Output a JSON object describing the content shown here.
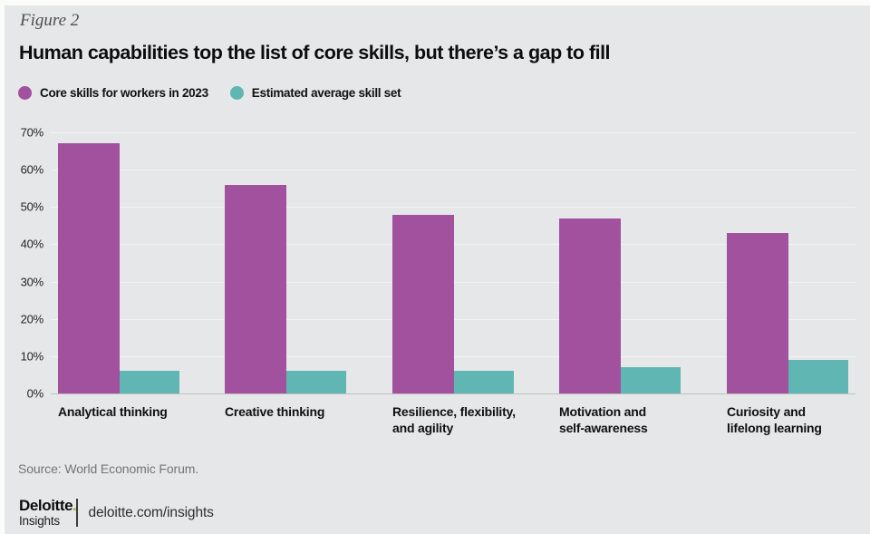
{
  "figure_label": "Figure 2",
  "title": "Human capabilities top the list of core skills, but there’s a gap to fill",
  "legend": [
    {
      "label": "Core skills for workers in 2023",
      "color": "#a1519e"
    },
    {
      "label": "Estimated average skill set",
      "color": "#5fb6b2"
    }
  ],
  "chart_data": {
    "type": "bar",
    "title": "Human capabilities top the list of core skills, but there’s a gap to fill",
    "categories": [
      "Analytical thinking",
      "Creative thinking",
      "Resilience, flexibility,\nand agility",
      "Motivation and\nself-awareness",
      "Curiosity and\nlifelong learning"
    ],
    "series": [
      {
        "name": "Core skills for workers in 2023",
        "color": "#a1519e",
        "values": [
          67,
          56,
          48,
          47,
          43
        ]
      },
      {
        "name": "Estimated average skill set",
        "color": "#5fb6b2",
        "values": [
          6,
          6,
          6,
          7,
          9
        ]
      }
    ],
    "xlabel": "",
    "ylabel": "",
    "y_ticks": [
      "70%",
      "60%",
      "50%",
      "40%",
      "30%",
      "20%",
      "10%",
      "0%"
    ],
    "ylim": [
      0,
      70
    ],
    "unit": "%",
    "grid": true,
    "legend_position": "top"
  },
  "source": "Source: World Economic Forum.",
  "footer": {
    "brand": "Deloitte",
    "brand_dot": ".",
    "brand_sub": "Insights",
    "link": "deloitte.com/insights"
  },
  "colors": {
    "background": "#e6e7e9",
    "page_edge": "#fbfbfa",
    "purple": "#a1519e",
    "teal": "#5fb6b2",
    "gridline": "#f2f3f5",
    "baseline": "#bfc0c2",
    "brand_green": "#86bc25"
  }
}
